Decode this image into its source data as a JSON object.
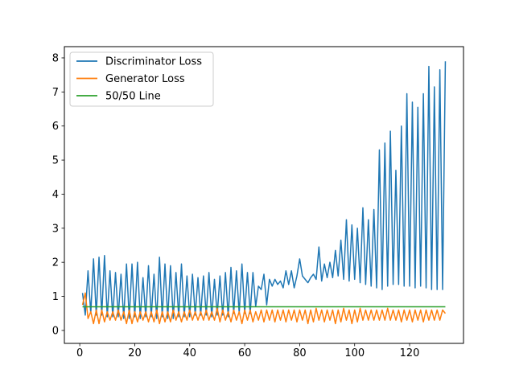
{
  "chart_data": {
    "type": "line",
    "title": "",
    "xlabel": "",
    "ylabel": "",
    "xlim": [
      -5.6,
      139.6
    ],
    "ylim": [
      -0.38,
      8.33
    ],
    "xticks": [
      0,
      20,
      40,
      60,
      80,
      100,
      120
    ],
    "yticks": [
      0,
      1,
      2,
      3,
      4,
      5,
      6,
      7,
      8
    ],
    "grid": false,
    "legend_location": "upper left",
    "series": [
      {
        "name": "Discriminator Loss",
        "color": "#1f77b4",
        "x": [
          1,
          2,
          3,
          4,
          5,
          6,
          7,
          8,
          9,
          10,
          11,
          12,
          13,
          14,
          15,
          16,
          17,
          18,
          19,
          20,
          21,
          22,
          23,
          24,
          25,
          26,
          27,
          28,
          29,
          30,
          31,
          32,
          33,
          34,
          35,
          36,
          37,
          38,
          39,
          40,
          41,
          42,
          43,
          44,
          45,
          46,
          47,
          48,
          49,
          50,
          51,
          52,
          53,
          54,
          55,
          56,
          57,
          58,
          59,
          60,
          61,
          62,
          63,
          64,
          65,
          66,
          67,
          68,
          69,
          70,
          71,
          72,
          73,
          74,
          75,
          76,
          77,
          78,
          79,
          80,
          81,
          82,
          83,
          84,
          85,
          86,
          87,
          88,
          89,
          90,
          91,
          92,
          93,
          94,
          95,
          96,
          97,
          98,
          99,
          100,
          101,
          102,
          103,
          104,
          105,
          106,
          107,
          108,
          109,
          110,
          111,
          112,
          113,
          114,
          115,
          116,
          117,
          118,
          119,
          120,
          121,
          122,
          123,
          124,
          125,
          126,
          127,
          128,
          129,
          130,
          131,
          132,
          133
        ],
        "values": [
          1.1,
          0.45,
          1.75,
          0.5,
          2.1,
          0.45,
          2.15,
          0.45,
          2.2,
          0.4,
          1.75,
          0.4,
          1.7,
          0.4,
          1.65,
          0.35,
          1.95,
          0.35,
          1.95,
          0.4,
          2.0,
          0.35,
          1.55,
          0.4,
          1.9,
          0.4,
          1.65,
          0.35,
          2.15,
          0.4,
          1.95,
          0.35,
          1.9,
          0.35,
          1.7,
          0.4,
          1.95,
          0.4,
          1.6,
          0.4,
          1.65,
          0.45,
          1.55,
          0.45,
          1.6,
          0.45,
          1.7,
          0.4,
          1.5,
          0.45,
          1.6,
          0.45,
          1.7,
          0.4,
          1.85,
          0.5,
          1.75,
          0.5,
          1.95,
          0.5,
          1.7,
          0.5,
          1.7,
          0.7,
          1.3,
          1.2,
          1.65,
          0.75,
          1.5,
          1.3,
          1.5,
          1.35,
          1.45,
          1.25,
          1.75,
          1.35,
          1.75,
          1.25,
          1.6,
          2.1,
          1.6,
          1.5,
          1.4,
          1.55,
          1.65,
          1.5,
          2.45,
          1.45,
          1.95,
          1.55,
          2.0,
          1.55,
          2.35,
          1.6,
          2.65,
          1.5,
          3.25,
          1.45,
          3.1,
          1.5,
          3.0,
          1.4,
          3.6,
          1.35,
          3.25,
          1.3,
          3.55,
          1.25,
          5.3,
          1.2,
          5.5,
          1.3,
          5.85,
          1.35,
          4.7,
          1.35,
          6.0,
          1.3,
          6.95,
          1.3,
          6.7,
          1.25,
          6.55,
          1.3,
          6.95,
          1.25,
          7.75,
          1.2,
          7.15,
          1.2,
          7.65,
          1.2,
          7.9
        ]
      },
      {
        "name": "Generator Loss",
        "color": "#ff7f0e",
        "x": [
          1,
          2,
          3,
          4,
          5,
          6,
          7,
          8,
          9,
          10,
          11,
          12,
          13,
          14,
          15,
          16,
          17,
          18,
          19,
          20,
          21,
          22,
          23,
          24,
          25,
          26,
          27,
          28,
          29,
          30,
          31,
          32,
          33,
          34,
          35,
          36,
          37,
          38,
          39,
          40,
          41,
          42,
          43,
          44,
          45,
          46,
          47,
          48,
          49,
          50,
          51,
          52,
          53,
          54,
          55,
          56,
          57,
          58,
          59,
          60,
          61,
          62,
          63,
          64,
          65,
          66,
          67,
          68,
          69,
          70,
          71,
          72,
          73,
          74,
          75,
          76,
          77,
          78,
          79,
          80,
          81,
          82,
          83,
          84,
          85,
          86,
          87,
          88,
          89,
          90,
          91,
          92,
          93,
          94,
          95,
          96,
          97,
          98,
          99,
          100,
          101,
          102,
          103,
          104,
          105,
          106,
          107,
          108,
          109,
          110,
          111,
          112,
          113,
          114,
          115,
          116,
          117,
          118,
          119,
          120,
          121,
          122,
          123,
          124,
          125,
          126,
          127,
          128,
          129,
          130,
          131,
          132,
          133
        ],
        "values": [
          0.75,
          1.1,
          0.35,
          0.55,
          0.2,
          0.6,
          0.2,
          0.6,
          0.25,
          0.55,
          0.3,
          0.55,
          0.3,
          0.6,
          0.3,
          0.55,
          0.2,
          0.6,
          0.2,
          0.55,
          0.25,
          0.55,
          0.3,
          0.55,
          0.25,
          0.55,
          0.25,
          0.6,
          0.2,
          0.55,
          0.25,
          0.55,
          0.25,
          0.6,
          0.3,
          0.55,
          0.25,
          0.55,
          0.3,
          0.6,
          0.3,
          0.55,
          0.3,
          0.55,
          0.3,
          0.6,
          0.3,
          0.55,
          0.3,
          0.65,
          0.25,
          0.6,
          0.3,
          0.55,
          0.25,
          0.6,
          0.3,
          0.55,
          0.2,
          0.6,
          0.3,
          0.6,
          0.25,
          0.55,
          0.3,
          0.6,
          0.25,
          0.6,
          0.3,
          0.6,
          0.25,
          0.6,
          0.3,
          0.6,
          0.25,
          0.6,
          0.3,
          0.6,
          0.25,
          0.6,
          0.3,
          0.6,
          0.2,
          0.6,
          0.25,
          0.65,
          0.3,
          0.6,
          0.25,
          0.6,
          0.3,
          0.6,
          0.2,
          0.6,
          0.25,
          0.65,
          0.3,
          0.6,
          0.2,
          0.6,
          0.25,
          0.65,
          0.3,
          0.6,
          0.3,
          0.6,
          0.3,
          0.6,
          0.3,
          0.6,
          0.3,
          0.65,
          0.3,
          0.6,
          0.3,
          0.6,
          0.25,
          0.6,
          0.3,
          0.6,
          0.25,
          0.6,
          0.3,
          0.6,
          0.25,
          0.6,
          0.3,
          0.6,
          0.3,
          0.6,
          0.3,
          0.6,
          0.5
        ]
      },
      {
        "name": "50/50 Line",
        "color": "#2ca02c",
        "x": [
          1,
          133
        ],
        "values": [
          0.693,
          0.693
        ]
      }
    ]
  }
}
